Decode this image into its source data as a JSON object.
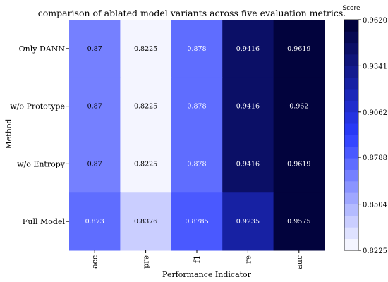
{
  "chart_data": {
    "type": "heatmap",
    "title": "comparison of ablated model variants across five evaluation metrics.",
    "xlabel": "Performance Indicator",
    "ylabel": "Method",
    "x_categories": [
      "acc",
      "pre",
      "f1",
      "re",
      "auc"
    ],
    "y_categories": [
      "Only DANN",
      "w/o Prototype",
      "w/o Entropy",
      "Full Model"
    ],
    "values": [
      [
        0.87,
        0.8225,
        0.878,
        0.9416,
        0.9619
      ],
      [
        0.87,
        0.8225,
        0.878,
        0.9416,
        0.962
      ],
      [
        0.87,
        0.8225,
        0.878,
        0.9416,
        0.9619
      ],
      [
        0.873,
        0.8376,
        0.8785,
        0.9235,
        0.9575
      ]
    ],
    "cell_labels": [
      [
        "0.87",
        "0.8225",
        "0.878",
        "0.9416",
        "0.9619"
      ],
      [
        "0.87",
        "0.8225",
        "0.878",
        "0.9416",
        "0.962"
      ],
      [
        "0.87",
        "0.8225",
        "0.878",
        "0.9416",
        "0.9619"
      ],
      [
        "0.873",
        "0.8376",
        "0.8785",
        "0.9235",
        "0.9575"
      ]
    ],
    "colorbar": {
      "title": "Score",
      "range": [
        0.8225,
        0.962
      ],
      "ticks": [
        "0.9620",
        "0.9341",
        "0.9062",
        "0.8788",
        "0.8504",
        "0.8225"
      ],
      "levels": 20,
      "colors": {
        "low": "#ffffff",
        "mid": "#2a3cff",
        "high": "#000033"
      }
    }
  }
}
